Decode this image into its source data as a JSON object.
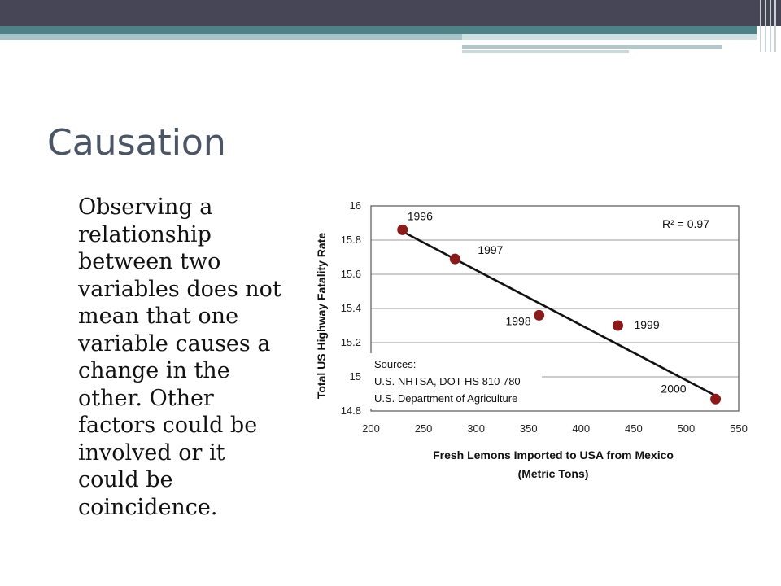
{
  "slide": {
    "title": "Causation",
    "body": "Observing a relationship between two variables does not mean that one variable causes a change in the other. Other factors could be involved or it could be coincidence."
  },
  "colors": {
    "header": "#464656",
    "accent": "#4f8287",
    "point": "#8b1a1a"
  },
  "chart_data": {
    "type": "scatter",
    "xlabel_line1": "Fresh Lemons Imported to USA from Mexico",
    "xlabel_line2": "(Metric Tons)",
    "ylabel": "Total US Highway Fatality Rate",
    "xlim": [
      200,
      550
    ],
    "ylim": [
      14.8,
      16
    ],
    "xticks": [
      200,
      250,
      300,
      350,
      400,
      450,
      500,
      550
    ],
    "yticks": [
      "14.8",
      "15",
      "15.2",
      "15.4",
      "15.6",
      "15.8",
      "16"
    ],
    "grid": true,
    "annotation": "R² = 0.97",
    "sources": [
      "Sources:",
      "U.S. NHTSA, DOT HS 810 780",
      "U.S. Department of Agriculture"
    ],
    "points": [
      {
        "label": "1996",
        "x": 230,
        "y": 15.86
      },
      {
        "label": "1997",
        "x": 280,
        "y": 15.69
      },
      {
        "label": "1998",
        "x": 360,
        "y": 15.36
      },
      {
        "label": "1999",
        "x": 435,
        "y": 15.3
      },
      {
        "label": "2000",
        "x": 528,
        "y": 14.87
      }
    ],
    "trendline": {
      "x": [
        230,
        528
      ],
      "y": [
        15.85,
        14.89
      ]
    }
  }
}
